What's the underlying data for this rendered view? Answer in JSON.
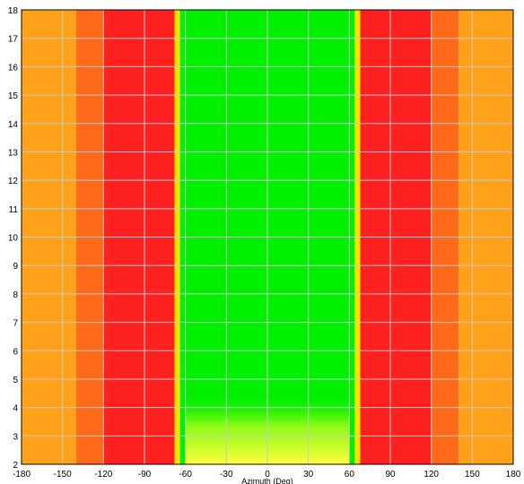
{
  "chart_data": {
    "type": "heatmap",
    "title": "",
    "xlabel": "Azimuth (Deg)",
    "ylabel": "",
    "xlim": [
      -180,
      180
    ],
    "ylim": [
      2,
      18
    ],
    "x_ticks": [
      -180,
      -150,
      -120,
      -90,
      -60,
      -30,
      0,
      30,
      60,
      90,
      120,
      150,
      180
    ],
    "y_ticks": [
      2,
      3,
      4,
      5,
      6,
      7,
      8,
      9,
      10,
      11,
      12,
      13,
      14,
      15,
      16,
      17,
      18
    ],
    "grid": true,
    "bands": [
      {
        "x": [
          -180,
          -140
        ],
        "color": "#ffa21a"
      },
      {
        "x": [
          -140,
          -120
        ],
        "color": "#ff6a1a"
      },
      {
        "x": [
          -120,
          -68
        ],
        "color": "#ff2020"
      },
      {
        "x": [
          -68,
          -64
        ],
        "color": "#ffe000"
      },
      {
        "x": [
          -64,
          64
        ],
        "color": "#00f000"
      },
      {
        "x": [
          64,
          68
        ],
        "color": "#ffe000"
      },
      {
        "x": [
          68,
          120
        ],
        "color": "#ff2020"
      },
      {
        "x": [
          120,
          140
        ],
        "color": "#ff6a1a"
      },
      {
        "x": [
          140,
          180
        ],
        "color": "#ffa21a"
      }
    ],
    "low_frequency_region": {
      "x": [
        -60,
        60
      ],
      "y": [
        2,
        4.5
      ],
      "color": "#ffff40"
    },
    "colors": {
      "grid": "#c8c8c8",
      "axis": "#000000"
    }
  }
}
